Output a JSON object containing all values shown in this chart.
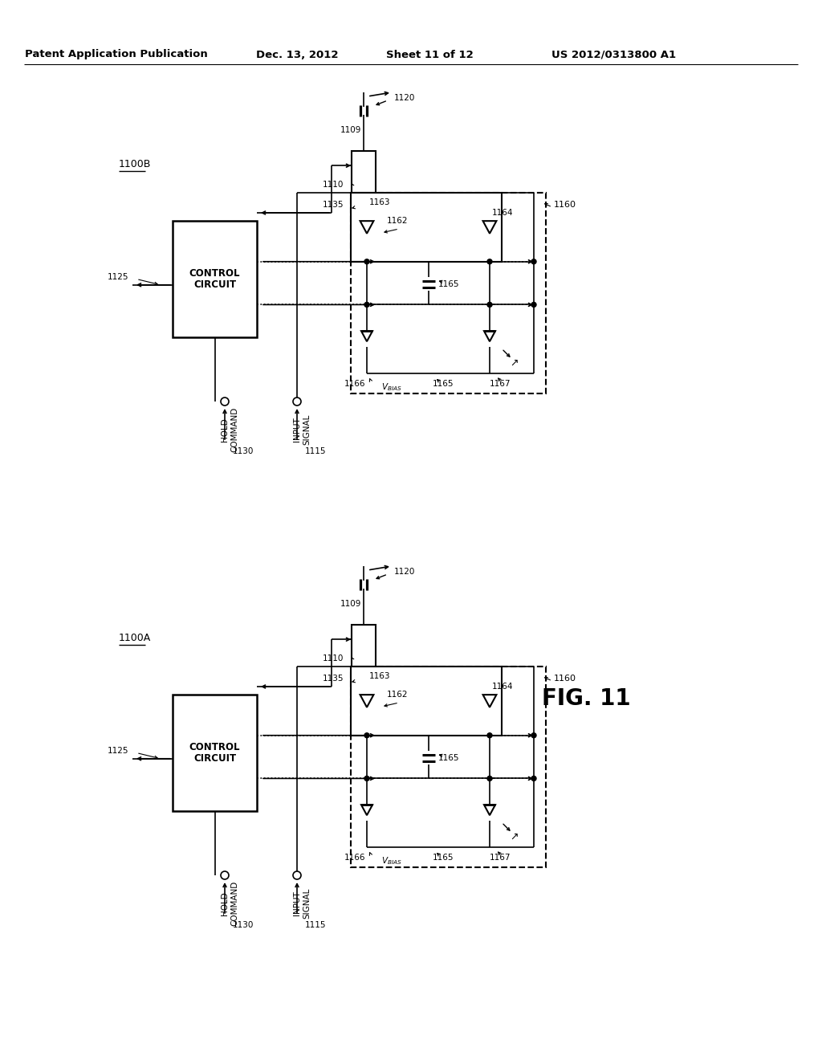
{
  "bg_color": "#ffffff",
  "header_text": "Patent Application Publication",
  "header_date": "Dec. 13, 2012",
  "header_sheet": "Sheet 11 of 12",
  "header_patent": "US 2012/0313800 A1",
  "fig_label": "FIG. 11",
  "diagram_B_label": "1100B",
  "diagram_A_label": "1100A",
  "figsize": [
    10.24,
    13.2
  ],
  "dpi": 100
}
